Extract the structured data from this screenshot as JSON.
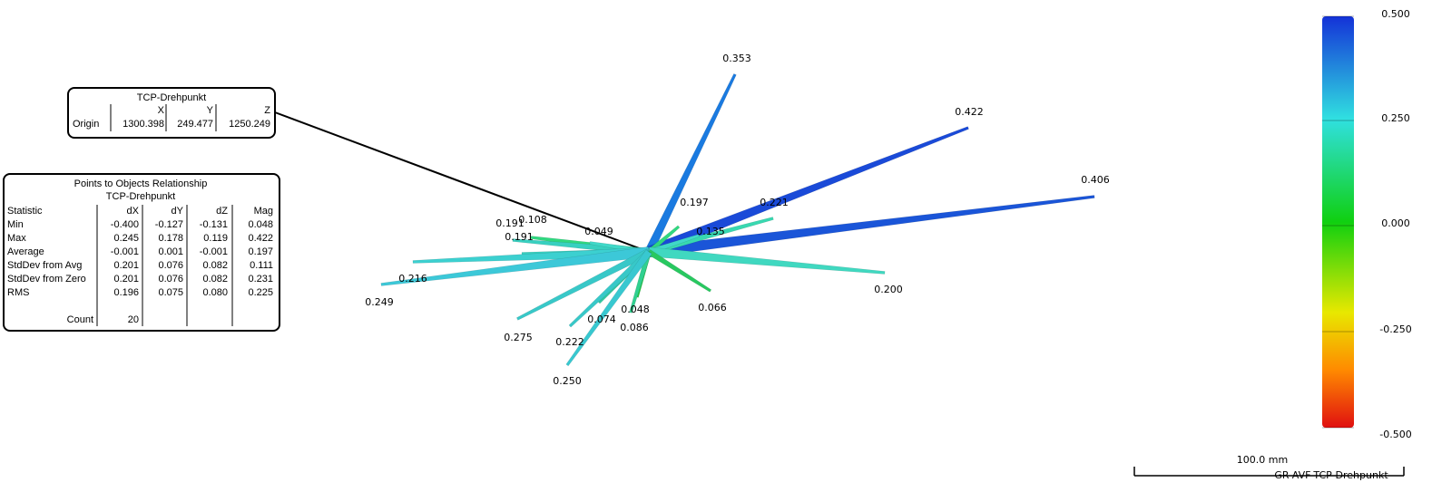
{
  "origin_box": {
    "title": "TCP-Drehpunkt",
    "columns": [
      "X",
      "Y",
      "Z"
    ],
    "row_label": "Origin",
    "values": [
      "1300.398",
      "249.477",
      "1250.249"
    ]
  },
  "stats_table": {
    "title": "Points to Objects Relationship",
    "subtitle": "TCP-Drehpunkt",
    "header": [
      "Statistic",
      "dX",
      "dY",
      "dZ",
      "Mag"
    ],
    "rows": [
      [
        "Min",
        "-0.400",
        "-0.127",
        "-0.131",
        "0.048"
      ],
      [
        "Max",
        "0.245",
        "0.178",
        "0.119",
        "0.422"
      ],
      [
        "Average",
        "-0.001",
        "0.001",
        "-0.001",
        "0.197"
      ],
      [
        "StdDev from Avg",
        "0.201",
        "0.076",
        "0.082",
        "0.111"
      ],
      [
        "StdDev from Zero",
        "0.201",
        "0.076",
        "0.082",
        "0.231"
      ],
      [
        "RMS",
        "0.196",
        "0.075",
        "0.080",
        "0.225"
      ]
    ],
    "count_label": "Count",
    "count": "20"
  },
  "vector_labels": [
    "0.353",
    "0.422",
    "0.406",
    "0.197",
    "0.221",
    "0.135",
    "0.108",
    "0.191",
    "0.049",
    "0.191",
    "0.216",
    "0.249",
    "0.200",
    "0.066",
    "0.048",
    "0.074",
    "0.086",
    "0.275",
    "0.222",
    "0.250"
  ],
  "color_scale": {
    "labels": [
      "0.500",
      "0.250",
      "0.000",
      "-0.250",
      "-0.500"
    ]
  },
  "scale_bar": {
    "label": "100.0 mm"
  },
  "object_name": "GR-AVF-TCP-Drehpunkt"
}
